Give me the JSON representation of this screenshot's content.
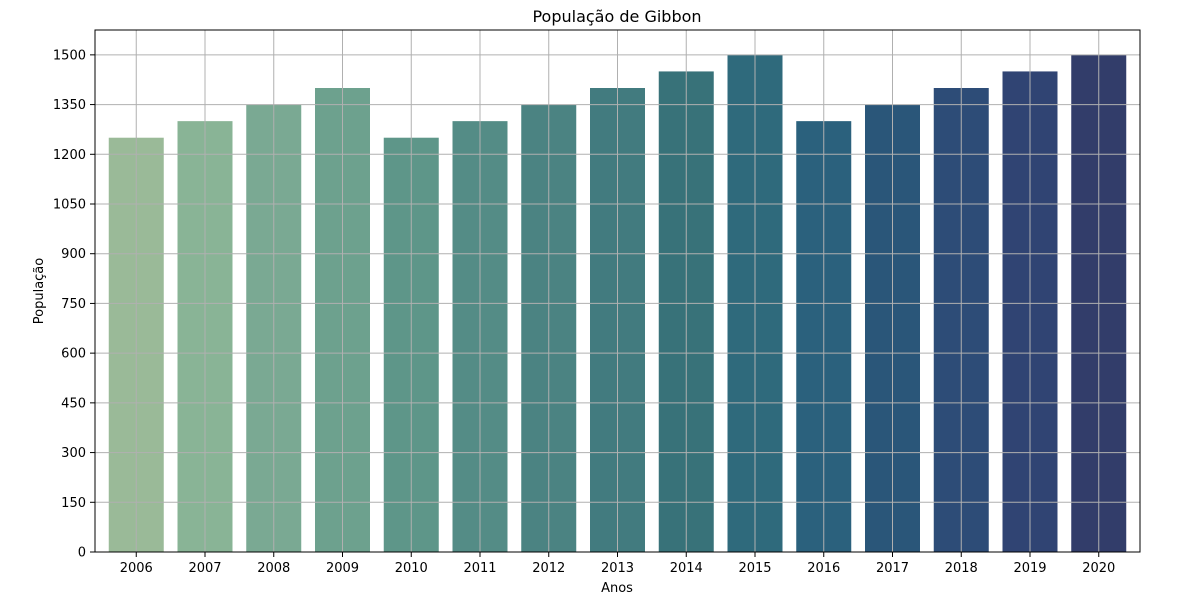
{
  "chart_data": {
    "type": "bar",
    "title": "População de Gibbon",
    "xlabel": "Anos",
    "ylabel": "População",
    "categories": [
      "2006",
      "2007",
      "2008",
      "2009",
      "2010",
      "2011",
      "2012",
      "2013",
      "2014",
      "2015",
      "2016",
      "2017",
      "2018",
      "2019",
      "2020"
    ],
    "values": [
      1250,
      1300,
      1350,
      1400,
      1250,
      1300,
      1350,
      1400,
      1450,
      1500,
      1300,
      1350,
      1400,
      1450,
      1500
    ],
    "colors": [
      "#9aba98",
      "#89b496",
      "#7aa993",
      "#6da18e",
      "#5e9689",
      "#548c86",
      "#4b8382",
      "#427b7f",
      "#387279",
      "#2f6a7c",
      "#2b617d",
      "#2a5679",
      "#2d4c77",
      "#304473",
      "#323d6a"
    ],
    "ylim": [
      0,
      1575
    ],
    "yticks": [
      0,
      150,
      300,
      450,
      600,
      750,
      900,
      1050,
      1200,
      1350,
      1500
    ],
    "grid": true,
    "legend": "none"
  }
}
